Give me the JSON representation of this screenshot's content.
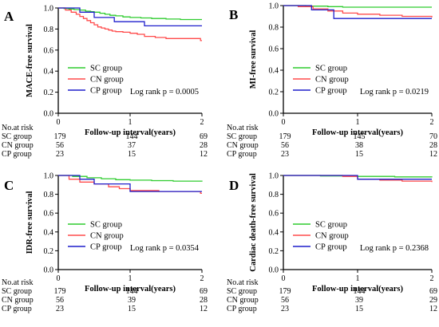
{
  "colors": {
    "SC": "#2ecc2e",
    "CN": "#ff4b4b",
    "CP": "#1f1fcc",
    "axis": "#000000"
  },
  "risk_table": {
    "header": "No.at risk",
    "rows": [
      "SC group",
      "CN group",
      "CP group"
    ]
  },
  "chart_data": [
    {
      "type": "line",
      "panel": "A",
      "ylabel": "MACE-free survival",
      "xlabel": "Follow-up interval(years)",
      "xlim": [
        0,
        2
      ],
      "ylim": [
        0.0,
        1.0
      ],
      "xticks": [
        "0",
        "1",
        "2"
      ],
      "yticks": [
        "0.0",
        "0.2",
        "0.4",
        "0.6",
        "0.8",
        "1.0"
      ],
      "legend_position": "bottom-left",
      "annotation": "Log rank p = 0.0005",
      "series": [
        {
          "name": "SC group",
          "color_key": "SC",
          "x": [
            0,
            0.08,
            0.15,
            0.22,
            0.3,
            0.38,
            0.45,
            0.5,
            0.58,
            0.65,
            0.72,
            0.8,
            0.9,
            1.0,
            1.15,
            1.3,
            1.5,
            1.7,
            2.0
          ],
          "y": [
            1.0,
            0.995,
            0.99,
            0.985,
            0.98,
            0.97,
            0.965,
            0.96,
            0.95,
            0.94,
            0.93,
            0.925,
            0.915,
            0.91,
            0.905,
            0.9,
            0.895,
            0.89,
            0.89
          ]
        },
        {
          "name": "CN group",
          "color_key": "CN",
          "x": [
            0,
            0.1,
            0.18,
            0.25,
            0.3,
            0.35,
            0.4,
            0.45,
            0.5,
            0.55,
            0.6,
            0.65,
            0.7,
            0.75,
            0.8,
            0.9,
            1.0,
            1.1,
            1.2,
            1.35,
            1.5,
            1.65,
            1.8,
            1.98,
            2.0
          ],
          "y": [
            1.0,
            0.98,
            0.96,
            0.94,
            0.92,
            0.9,
            0.88,
            0.86,
            0.84,
            0.82,
            0.81,
            0.8,
            0.79,
            0.78,
            0.775,
            0.77,
            0.76,
            0.75,
            0.73,
            0.72,
            0.71,
            0.71,
            0.71,
            0.69,
            0.69
          ]
        },
        {
          "name": "CP group",
          "color_key": "CP",
          "x": [
            0,
            0.3,
            0.5,
            0.78,
            1.05,
            1.2,
            2.0
          ],
          "y": [
            1.0,
            0.96,
            0.91,
            0.87,
            0.87,
            0.83,
            0.83
          ]
        }
      ],
      "risk_values": [
        [
          "179",
          "144",
          "69"
        ],
        [
          "56",
          "37",
          "28"
        ],
        [
          "23",
          "15",
          "12"
        ]
      ]
    },
    {
      "type": "line",
      "panel": "B",
      "ylabel": "MI-free survival",
      "xlabel": "Follow-up interval(years)",
      "xlim": [
        0,
        2
      ],
      "ylim": [
        0.0,
        1.0
      ],
      "xticks": [
        "0",
        "1",
        "2"
      ],
      "yticks": [
        "0.0",
        "0.2",
        "0.4",
        "0.6",
        "0.8",
        "1.0"
      ],
      "legend_position": "bottom-left",
      "annotation": "Log rank p = 0.0219",
      "series": [
        {
          "name": "SC group",
          "color_key": "SC",
          "x": [
            0,
            0.3,
            0.6,
            0.8,
            1.0,
            2.0
          ],
          "y": [
            1.0,
            0.995,
            0.99,
            0.985,
            0.985,
            0.985
          ]
        },
        {
          "name": "CN group",
          "color_key": "CN",
          "x": [
            0,
            0.2,
            0.4,
            0.6,
            0.8,
            1.0,
            1.3,
            1.6,
            1.9,
            2.0
          ],
          "y": [
            1.0,
            0.99,
            0.97,
            0.95,
            0.93,
            0.92,
            0.91,
            0.9,
            0.9,
            0.89
          ]
        },
        {
          "name": "CP group",
          "color_key": "CP",
          "x": [
            0,
            0.38,
            0.68,
            2.0
          ],
          "y": [
            1.0,
            0.96,
            0.88,
            0.88
          ]
        }
      ],
      "risk_values": [
        [
          "179",
          "145",
          "70"
        ],
        [
          "56",
          "38",
          "28"
        ],
        [
          "23",
          "15",
          "12"
        ]
      ]
    },
    {
      "type": "line",
      "panel": "C",
      "ylabel": "IDR-free survival",
      "xlabel": "Follow-up interval(years)",
      "xlim": [
        0,
        2
      ],
      "ylim": [
        0.0,
        1.0
      ],
      "xticks": [
        "0",
        "1",
        "2"
      ],
      "yticks": [
        "0.0",
        "0.2",
        "0.4",
        "0.6",
        "0.8",
        "1.0"
      ],
      "legend_position": "bottom-left",
      "annotation": "Log rank p = 0.0354",
      "series": [
        {
          "name": "SC group",
          "color_key": "SC",
          "x": [
            0,
            0.2,
            0.4,
            0.6,
            0.8,
            1.0,
            1.3,
            1.6,
            2.0
          ],
          "y": [
            1.0,
            0.99,
            0.975,
            0.965,
            0.955,
            0.95,
            0.945,
            0.94,
            0.935
          ]
        },
        {
          "name": "CN group",
          "color_key": "CN",
          "x": [
            0,
            0.15,
            0.3,
            0.5,
            0.7,
            0.85,
            1.0,
            1.4,
            1.98,
            2.0
          ],
          "y": [
            1.0,
            0.96,
            0.93,
            0.91,
            0.88,
            0.86,
            0.84,
            0.83,
            0.81,
            0.81
          ]
        },
        {
          "name": "CP group",
          "color_key": "CP",
          "x": [
            0,
            0.3,
            0.5,
            1.0,
            2.0
          ],
          "y": [
            1.0,
            0.96,
            0.91,
            0.83,
            0.83
          ]
        }
      ],
      "risk_values": [
        [
          "179",
          "144",
          "69"
        ],
        [
          "56",
          "39",
          "28"
        ],
        [
          "23",
          "15",
          "12"
        ]
      ]
    },
    {
      "type": "line",
      "panel": "D",
      "ylabel": "Cardiac death-free survival",
      "xlabel": "Follow-up interval(years)",
      "xlim": [
        0,
        2
      ],
      "ylim": [
        0.0,
        1.0
      ],
      "xticks": [
        "0",
        "1",
        "2"
      ],
      "yticks": [
        "0.0",
        "0.2",
        "0.4",
        "0.6",
        "0.8",
        "1.0"
      ],
      "legend_position": "bottom-left",
      "annotation": "Log rank p = 0.2368",
      "series": [
        {
          "name": "SC group",
          "color_key": "SC",
          "x": [
            0,
            0.5,
            1.0,
            1.5,
            2.0
          ],
          "y": [
            1.0,
            0.995,
            0.99,
            0.985,
            0.98
          ]
        },
        {
          "name": "CN group",
          "color_key": "CN",
          "x": [
            0,
            0.8,
            1.0,
            1.3,
            1.6,
            2.0
          ],
          "y": [
            1.0,
            0.99,
            0.96,
            0.95,
            0.94,
            0.93
          ]
        },
        {
          "name": "CP group",
          "color_key": "CP",
          "x": [
            0,
            1.0,
            2.0
          ],
          "y": [
            1.0,
            0.96,
            0.96
          ]
        }
      ],
      "risk_values": [
        [
          "179",
          "144",
          "69"
        ],
        [
          "56",
          "39",
          "29"
        ],
        [
          "23",
          "15",
          "12"
        ]
      ]
    }
  ]
}
